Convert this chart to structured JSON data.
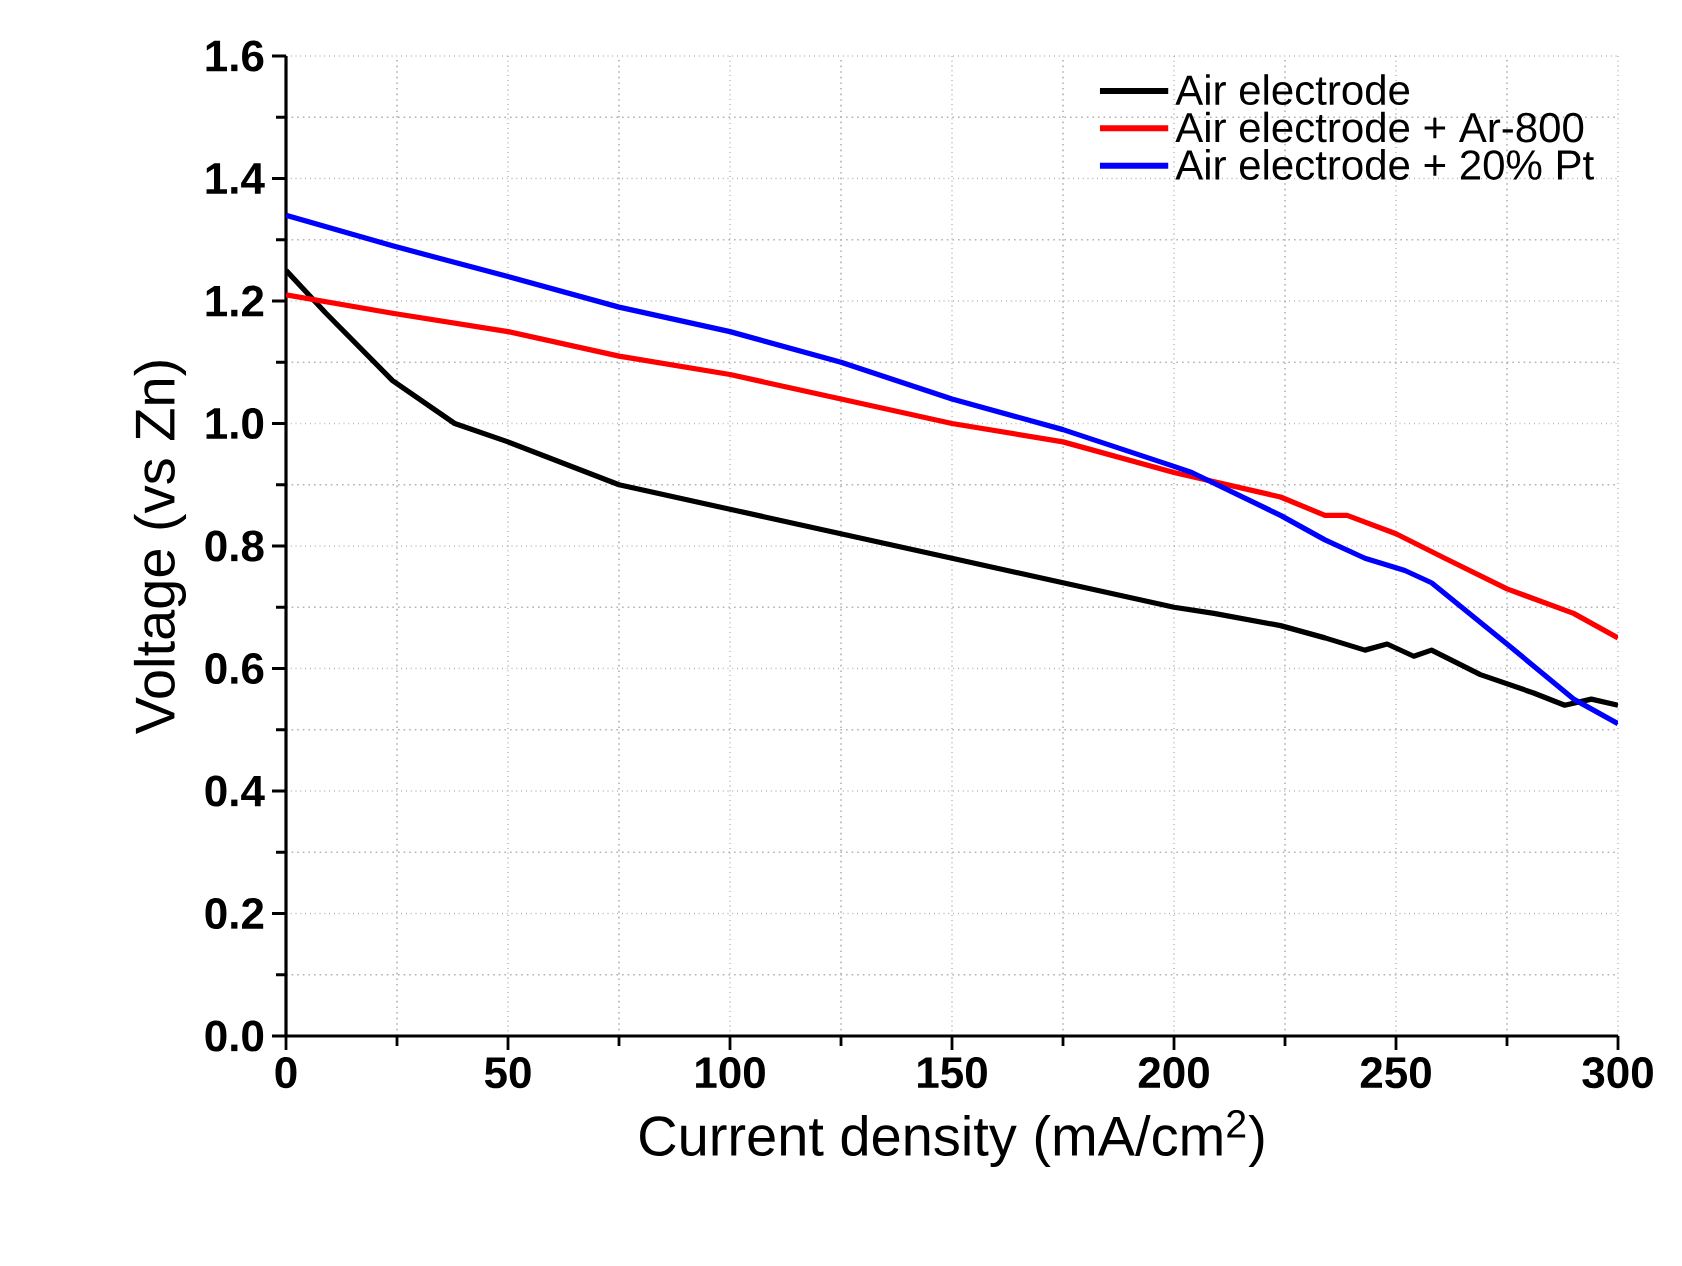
{
  "chart_data": {
    "type": "line",
    "xlabel": "Current density (mA/cm$^{2}$)",
    "ylabel": "Voltage (vs Zn)",
    "xlim": [
      0,
      300
    ],
    "ylim": [
      0,
      1.6
    ],
    "xticks": [
      0,
      50,
      100,
      150,
      200,
      250,
      300
    ],
    "yticks": [
      {
        "value": 0,
        "label": "0.0"
      },
      {
        "value": 0.2,
        "label": "0.2"
      },
      {
        "value": 0.4,
        "label": "0.4"
      },
      {
        "value": 0.6,
        "label": "0.6"
      },
      {
        "value": 0.8,
        "label": "0.8"
      },
      {
        "value": 1.0,
        "label": "1.0"
      },
      {
        "value": 1.2,
        "label": "1.2"
      },
      {
        "value": 1.4,
        "label": "1.4"
      },
      {
        "value": 1.6,
        "label": "1.6"
      }
    ],
    "grid": true,
    "legend": "top right",
    "line_style": "solid",
    "series": [
      {
        "name": "Air electrode",
        "color": "#000000",
        "x": [
          0,
          9,
          24,
          38,
          50,
          75,
          100,
          125,
          150,
          175,
          200,
          209,
          224,
          234,
          243,
          248,
          254,
          258,
          269,
          281,
          288,
          294,
          300
        ],
        "values": [
          1.25,
          1.18,
          1.07,
          1.0,
          0.97,
          0.9,
          0.86,
          0.82,
          0.78,
          0.74,
          0.7,
          0.69,
          0.67,
          0.65,
          0.63,
          0.64,
          0.62,
          0.63,
          0.59,
          0.56,
          0.54,
          0.55,
          0.54
        ]
      },
      {
        "name": "Air electrode + Ar-800",
        "color": "#ff0000",
        "x": [
          0,
          24,
          50,
          75,
          100,
          125,
          150,
          175,
          200,
          224,
          234,
          239,
          250,
          261,
          275,
          290,
          300
        ],
        "values": [
          1.21,
          1.18,
          1.15,
          1.11,
          1.08,
          1.04,
          1.0,
          0.97,
          0.92,
          0.88,
          0.85,
          0.85,
          0.82,
          0.78,
          0.73,
          0.69,
          0.65
        ]
      },
      {
        "name": "Air electrode + 20% Pt",
        "color": "#0000ff",
        "x": [
          0,
          24,
          50,
          75,
          100,
          125,
          150,
          175,
          200,
          204,
          224,
          234,
          243,
          252,
          258,
          275,
          290,
          300
        ],
        "values": [
          1.34,
          1.29,
          1.24,
          1.19,
          1.15,
          1.1,
          1.04,
          0.99,
          0.93,
          0.92,
          0.85,
          0.81,
          0.78,
          0.76,
          0.74,
          0.64,
          0.55,
          0.51
        ]
      }
    ]
  }
}
